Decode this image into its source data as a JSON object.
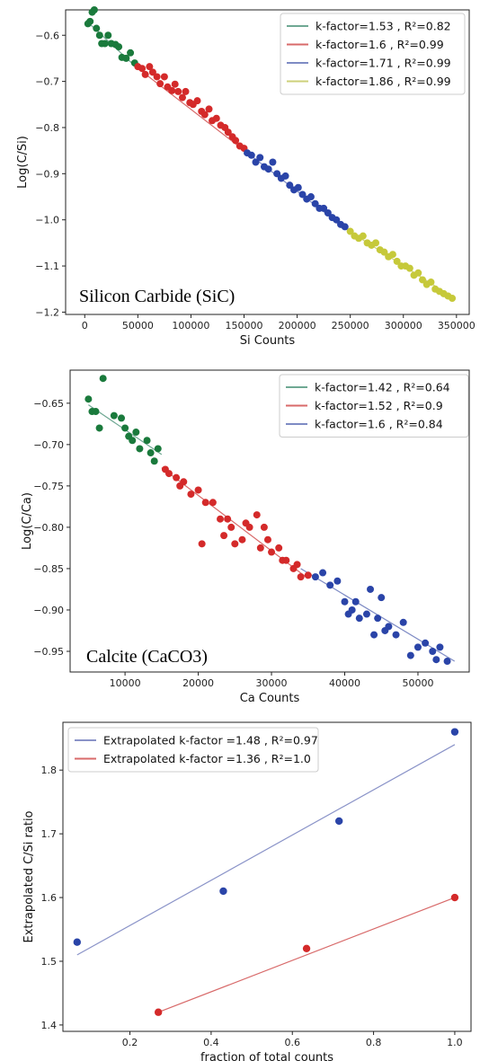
{
  "chart_data": [
    {
      "type": "scatter",
      "xlabel": "Si Counts",
      "ylabel": "Log(C/Si)",
      "annotation": "Silicon  Carbide (SiC)",
      "xlim": [
        -18000,
        362000
      ],
      "ylim": [
        -1.205,
        -0.545
      ],
      "xticks": [
        0,
        50000,
        100000,
        150000,
        200000,
        250000,
        300000,
        350000
      ],
      "yticks": [
        -1.2,
        -1.1,
        -1.0,
        -0.9,
        -0.8,
        -0.7,
        -0.6
      ],
      "legend_position": "top-right",
      "grid": false,
      "series": [
        {
          "name": "k-factor=1.53 , R²=0.82",
          "color": "#1a7a3c",
          "line_color": "#6fa893",
          "fit": [
            [
              3000,
              -0.572
            ],
            [
              48000,
              -0.668
            ]
          ],
          "x": [
            3000,
            5000,
            7000,
            9000,
            11000,
            14000,
            16000,
            19000,
            22000,
            25000,
            29000,
            32000,
            35000,
            39000,
            43000,
            47000
          ],
          "y": [
            -0.575,
            -0.57,
            -0.55,
            -0.545,
            -0.585,
            -0.6,
            -0.618,
            -0.618,
            -0.6,
            -0.618,
            -0.62,
            -0.625,
            -0.648,
            -0.65,
            -0.638,
            -0.66
          ]
        },
        {
          "name": "k-factor=1.6 , R²=0.99",
          "color": "#d42a2a",
          "line_color": "#d86a6a",
          "fit": [
            [
              48000,
              -0.668
            ],
            [
              152000,
              -0.853
            ]
          ],
          "x": [
            50000,
            54000,
            57000,
            61000,
            64000,
            68000,
            71000,
            75000,
            78000,
            82000,
            85000,
            88000,
            92000,
            95000,
            99000,
            102000,
            106000,
            110000,
            113000,
            117000,
            120000,
            124000,
            128000,
            132000,
            135000,
            139000,
            142000,
            146000,
            150000
          ],
          "y": [
            -0.668,
            -0.672,
            -0.685,
            -0.668,
            -0.68,
            -0.69,
            -0.705,
            -0.69,
            -0.712,
            -0.72,
            -0.706,
            -0.722,
            -0.735,
            -0.722,
            -0.746,
            -0.75,
            -0.742,
            -0.765,
            -0.772,
            -0.76,
            -0.785,
            -0.78,
            -0.795,
            -0.8,
            -0.81,
            -0.82,
            -0.828,
            -0.84,
            -0.845
          ]
        },
        {
          "name": "k-factor=1.71 , R²=0.99",
          "color": "#2a44a8",
          "line_color": "#7e8bc4",
          "fit": [
            [
              152000,
              -0.853
            ],
            [
              248000,
              -1.023
            ]
          ],
          "x": [
            153000,
            157000,
            161000,
            165000,
            169000,
            173000,
            177000,
            181000,
            185000,
            189000,
            193000,
            197000,
            201000,
            205000,
            209000,
            213000,
            217000,
            221000,
            225000,
            229000,
            233000,
            237000,
            241000,
            245000
          ],
          "y": [
            -0.855,
            -0.86,
            -0.875,
            -0.865,
            -0.885,
            -0.89,
            -0.875,
            -0.9,
            -0.91,
            -0.905,
            -0.925,
            -0.935,
            -0.93,
            -0.945,
            -0.955,
            -0.95,
            -0.965,
            -0.975,
            -0.975,
            -0.985,
            -0.995,
            -1.0,
            -1.01,
            -1.015
          ]
        },
        {
          "name": "k-factor=1.86 , R²=0.99",
          "color": "#c6c93a",
          "line_color": "#cdd07a",
          "fit": [
            [
              248000,
              -1.023
            ],
            [
              348000,
              -1.17
            ]
          ],
          "x": [
            250000,
            254000,
            258000,
            262000,
            266000,
            270000,
            274000,
            278000,
            282000,
            286000,
            290000,
            294000,
            298000,
            302000,
            306000,
            310000,
            314000,
            318000,
            322000,
            326000,
            330000,
            334000,
            338000,
            342000,
            346000
          ],
          "y": [
            -1.025,
            -1.035,
            -1.04,
            -1.035,
            -1.05,
            -1.055,
            -1.05,
            -1.065,
            -1.07,
            -1.08,
            -1.075,
            -1.09,
            -1.1,
            -1.1,
            -1.105,
            -1.12,
            -1.115,
            -1.13,
            -1.14,
            -1.135,
            -1.15,
            -1.155,
            -1.16,
            -1.165,
            -1.17
          ]
        }
      ]
    },
    {
      "type": "scatter",
      "xlabel": "Ca Counts",
      "ylabel": "Log(C/Ca)",
      "annotation": "Calcite (CaCO3)",
      "xlim": [
        2500,
        57000
      ],
      "ylim": [
        -0.975,
        -0.61
      ],
      "xticks": [
        10000,
        20000,
        30000,
        40000,
        50000
      ],
      "yticks": [
        -0.95,
        -0.9,
        -0.85,
        -0.8,
        -0.75,
        -0.7,
        -0.65
      ],
      "legend_position": "top-right",
      "grid": false,
      "series": [
        {
          "name": "k-factor=1.42 , R²=0.64",
          "color": "#1a7a3c",
          "line_color": "#6fa893",
          "fit": [
            [
              5000,
              -0.652
            ],
            [
              15000,
              -0.712
            ]
          ],
          "x": [
            5000,
            5500,
            6000,
            6500,
            7000,
            8500,
            9500,
            10000,
            10500,
            11000,
            11500,
            12000,
            13000,
            13500,
            14000,
            14500
          ],
          "y": [
            -0.645,
            -0.66,
            -0.66,
            -0.68,
            -0.62,
            -0.665,
            -0.668,
            -0.68,
            -0.69,
            -0.695,
            -0.685,
            -0.705,
            -0.695,
            -0.71,
            -0.72,
            -0.705
          ]
        },
        {
          "name": "k-factor=1.52 , R²=0.9",
          "color": "#d42a2a",
          "line_color": "#d86a6a",
          "fit": [
            [
              15000,
              -0.728
            ],
            [
              35000,
              -0.862
            ]
          ],
          "x": [
            15500,
            16000,
            17000,
            18000,
            19000,
            20000,
            21000,
            22000,
            23000,
            24000,
            24500,
            25000,
            26000,
            27000,
            28000,
            28500,
            29000,
            30000,
            31000,
            32000,
            33000,
            34000,
            35000,
            20500,
            23500,
            26500,
            29500,
            31500,
            17500,
            33500
          ],
          "y": [
            -0.73,
            -0.735,
            -0.74,
            -0.745,
            -0.76,
            -0.755,
            -0.77,
            -0.77,
            -0.79,
            -0.79,
            -0.8,
            -0.82,
            -0.815,
            -0.8,
            -0.785,
            -0.825,
            -0.8,
            -0.83,
            -0.825,
            -0.84,
            -0.85,
            -0.86,
            -0.858,
            -0.82,
            -0.81,
            -0.795,
            -0.815,
            -0.84,
            -0.75,
            -0.845
          ]
        },
        {
          "name": "k-factor=1.6 , R²=0.84",
          "color": "#2a44a8",
          "line_color": "#7e8bc4",
          "fit": [
            [
              34000,
              -0.85
            ],
            [
              55000,
              -0.962
            ]
          ],
          "x": [
            36000,
            37000,
            38000,
            39000,
            40000,
            41000,
            42000,
            43000,
            43500,
            44000,
            44500,
            45000,
            46000,
            47000,
            48000,
            49000,
            50000,
            51000,
            52000,
            52500,
            53000,
            54000,
            41500,
            45500,
            40500
          ],
          "y": [
            -0.86,
            -0.855,
            -0.87,
            -0.865,
            -0.89,
            -0.9,
            -0.91,
            -0.905,
            -0.875,
            -0.93,
            -0.91,
            -0.885,
            -0.92,
            -0.93,
            -0.915,
            -0.955,
            -0.945,
            -0.94,
            -0.95,
            -0.96,
            -0.945,
            -0.962,
            -0.89,
            -0.925,
            -0.905
          ]
        }
      ]
    },
    {
      "type": "scatter",
      "xlabel": "fraction of total counts",
      "ylabel": "Extrapolated C/Si ratio",
      "xlim": [
        0.035,
        1.04
      ],
      "ylim": [
        1.39,
        1.875
      ],
      "xticks": [
        0.2,
        0.4,
        0.6,
        0.8,
        1.0
      ],
      "yticks": [
        1.4,
        1.5,
        1.6,
        1.7,
        1.8
      ],
      "legend_position": "top-left",
      "grid": false,
      "series": [
        {
          "name": "Extrapolated k-factor =1.48 , R²=0.97",
          "color": "#2a44a8",
          "line_color": "#8a93c8",
          "fit": [
            [
              0.07,
              1.51
            ],
            [
              1.0,
              1.84
            ]
          ],
          "x": [
            0.07,
            0.43,
            0.715,
            1.0
          ],
          "y": [
            1.53,
            1.61,
            1.72,
            1.86
          ]
        },
        {
          "name": "Extrapolated k-factor =1.36 , R²=1.0",
          "color": "#d42a2a",
          "line_color": "#d86a6a",
          "fit": [
            [
              0.27,
              1.42
            ],
            [
              1.0,
              1.6
            ]
          ],
          "x": [
            0.27,
            0.635,
            1.0
          ],
          "y": [
            1.42,
            1.52,
            1.6
          ]
        }
      ]
    }
  ]
}
